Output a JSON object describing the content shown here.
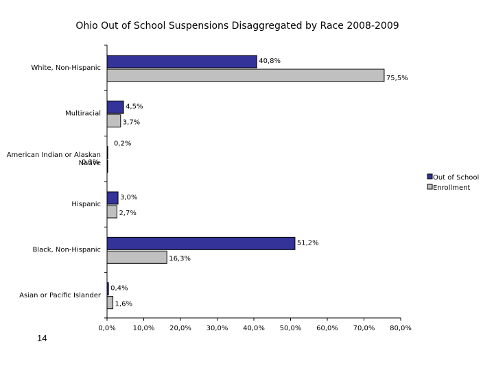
{
  "page_number": "14",
  "chart_data": {
    "type": "bar",
    "orientation": "horizontal",
    "title": "Ohio Out of School Suspensions Disaggregated by Race 2008-2009",
    "categories": [
      [
        "White, Non-Hispanic"
      ],
      [
        "Multiracial"
      ],
      [
        "American Indian or Alaskan",
        "Native"
      ],
      [
        "Hispanic"
      ],
      [
        "Black, Non-Hispanic"
      ],
      [
        "Asian or Pacific Islander"
      ]
    ],
    "series": [
      {
        "name": "Out of School",
        "color": "#333399",
        "values": [
          40.8,
          4.5,
          0.2,
          3.0,
          51.2,
          0.4
        ],
        "labels": [
          "40,8%",
          "4,5%",
          "0,2%",
          "3,0%",
          "51,2%",
          "0,4%"
        ]
      },
      {
        "name": "Enrollment",
        "color": "#c0c0c0",
        "values": [
          75.5,
          3.7,
          0.1,
          2.7,
          16.3,
          1.6
        ],
        "labels": [
          "75,5%",
          "3,7%",
          "0,1%",
          "2,7%",
          "16,3%",
          "1,6%"
        ]
      }
    ],
    "xlim": [
      0,
      80
    ],
    "xticks": [
      "0,0%",
      "10,0%",
      "20,0%",
      "30,0%",
      "40,0%",
      "50,0%",
      "60,0%",
      "70,0%",
      "80,0%"
    ],
    "legend_position": "right",
    "grid": false
  }
}
